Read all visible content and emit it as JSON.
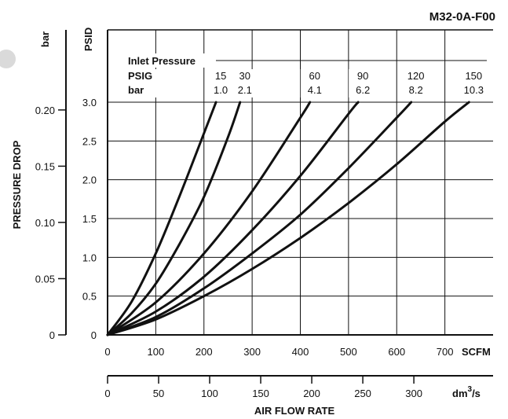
{
  "chart_data": {
    "type": "line",
    "title": "M32-0A-F00",
    "xlabel": "AIR FLOW RATE",
    "ylabel": "PRESSURE DROP",
    "x_unit": "SCFM",
    "x2_unit": "dm3/s",
    "y_unit": "PSID",
    "y2_unit": "bar",
    "xlim": [
      0,
      800
    ],
    "ylim": [
      0,
      3.0
    ],
    "x2lim": [
      0,
      377.6
    ],
    "y2lim": [
      0,
      0.2069
    ],
    "x_ticks": [
      0,
      100,
      200,
      300,
      400,
      500,
      600,
      700
    ],
    "y_ticks": [
      0,
      0.5,
      1.0,
      1.5,
      2.0,
      2.5,
      3.0
    ],
    "x2_ticks": [
      0,
      50,
      100,
      150,
      200,
      250,
      300
    ],
    "y2_ticks": [
      0,
      0.05,
      0.1,
      0.15,
      0.2
    ],
    "x_tick_labels": [
      "0",
      "100",
      "200",
      "300",
      "400",
      "500",
      "600",
      "700"
    ],
    "y_tick_labels": [
      "0",
      "0.5",
      "1.0",
      "1.5",
      "2.0",
      "2.5",
      "3.0"
    ],
    "x2_tick_labels": [
      "0",
      "50",
      "100",
      "150",
      "200",
      "250",
      "300"
    ],
    "y2_tick_labels": [
      "0",
      "0.05",
      "0.10",
      "0.15",
      "0.20"
    ],
    "grid": true,
    "legend": {
      "title": "Inlet Pressure",
      "row1_label": "PSIG",
      "row2_label": "bar"
    },
    "series": [
      {
        "psig": "15",
        "bar": "1.0",
        "x": [
          0,
          50,
          100,
          150,
          200,
          225
        ],
        "y": [
          0,
          0.43,
          1.05,
          1.8,
          2.6,
          3.0
        ]
      },
      {
        "psig": "30",
        "bar": "2.1",
        "x": [
          0,
          50,
          100,
          150,
          200,
          250,
          275
        ],
        "y": [
          0,
          0.28,
          0.66,
          1.18,
          1.78,
          2.55,
          3.0
        ]
      },
      {
        "psig": "60",
        "bar": "4.1",
        "x": [
          0,
          100,
          200,
          300,
          400,
          420
        ],
        "y": [
          0,
          0.42,
          1.05,
          1.85,
          2.8,
          3.0
        ]
      },
      {
        "psig": "90",
        "bar": "6.2",
        "x": [
          0,
          100,
          200,
          300,
          400,
          500,
          520
        ],
        "y": [
          0,
          0.3,
          0.75,
          1.35,
          2.05,
          2.85,
          3.0
        ]
      },
      {
        "psig": "120",
        "bar": "8.2",
        "x": [
          0,
          100,
          200,
          300,
          400,
          500,
          600,
          630
        ],
        "y": [
          0,
          0.23,
          0.6,
          1.05,
          1.55,
          2.15,
          2.8,
          3.0
        ]
      },
      {
        "psig": "150",
        "bar": "10.3",
        "x": [
          0,
          100,
          200,
          300,
          400,
          500,
          600,
          700,
          750
        ],
        "y": [
          0,
          0.2,
          0.5,
          0.85,
          1.25,
          1.7,
          2.2,
          2.75,
          3.0
        ]
      }
    ]
  }
}
